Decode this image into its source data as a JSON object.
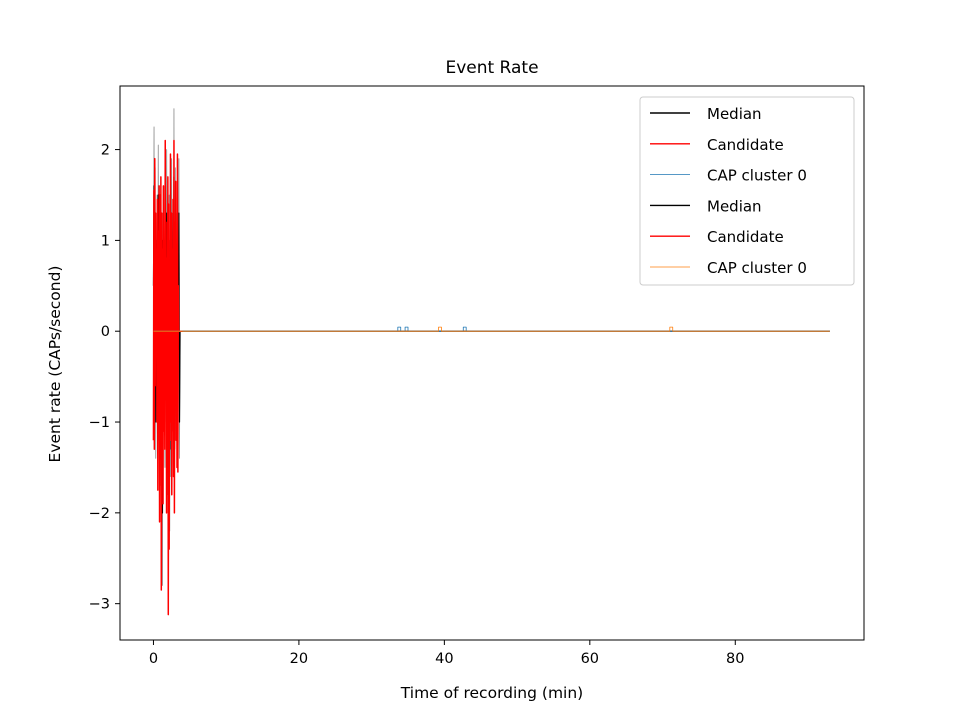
{
  "chart_data": {
    "type": "line",
    "title": "Event Rate",
    "xlabel": "Time of recording (min)",
    "ylabel": "Event rate (CAPs/second)",
    "xlim": [
      -4.6,
      97.7
    ],
    "ylim": [
      -3.4,
      2.7
    ],
    "xticks": [
      0,
      20,
      40,
      60,
      80
    ],
    "xtick_labels": [
      "0",
      "20",
      "40",
      "60",
      "80"
    ],
    "yticks": [
      -3,
      -2,
      -1,
      0,
      1,
      2
    ],
    "ytick_labels": [
      "−3",
      "−2",
      "−1",
      "0",
      "1",
      "2"
    ],
    "grid": false,
    "legend_position": "top-right",
    "legend": [
      {
        "label": "Median",
        "color": "#000000"
      },
      {
        "label": "Candidate",
        "color": "#ff0000"
      },
      {
        "label": "CAP cluster 0",
        "color": "#1f77b4"
      },
      {
        "label": "Median",
        "color": "#000000"
      },
      {
        "label": "Candidate",
        "color": "#ff0000"
      },
      {
        "label": "CAP cluster 0",
        "color": "#ff7f0e"
      }
    ],
    "series": [
      {
        "color": "#888888",
        "values": [
          [
            0.0,
            0.6
          ],
          [
            0.08,
            2.25
          ],
          [
            0.16,
            -0.9
          ],
          [
            0.24,
            1.8
          ],
          [
            0.32,
            -1.4
          ],
          [
            0.4,
            0.8
          ],
          [
            0.5,
            1.5
          ],
          [
            0.58,
            -0.3
          ],
          [
            0.66,
            2.05
          ],
          [
            0.74,
            -1.2
          ],
          [
            0.82,
            0.5
          ],
          [
            0.9,
            -1.7
          ],
          [
            1.0,
            1.3
          ],
          [
            1.08,
            -2.0
          ],
          [
            1.16,
            0.9
          ],
          [
            1.24,
            -2.8
          ],
          [
            1.32,
            1.6
          ],
          [
            1.4,
            -1.0
          ],
          [
            1.5,
            0.7
          ],
          [
            1.58,
            -1.5
          ],
          [
            1.66,
            1.4
          ],
          [
            1.74,
            -0.6
          ],
          [
            1.82,
            2.0
          ],
          [
            1.9,
            -1.8
          ],
          [
            2.0,
            1.2
          ],
          [
            2.08,
            -3.0
          ],
          [
            2.16,
            1.5
          ],
          [
            2.24,
            -2.2
          ],
          [
            2.32,
            0.9
          ],
          [
            2.4,
            -1.3
          ],
          [
            2.5,
            1.9
          ],
          [
            2.58,
            -0.8
          ],
          [
            2.66,
            1.1
          ],
          [
            2.74,
            -1.6
          ],
          [
            2.82,
            2.45
          ],
          [
            2.9,
            -1.9
          ],
          [
            3.0,
            1.8
          ],
          [
            3.08,
            -0.7
          ],
          [
            3.16,
            1.3
          ],
          [
            3.24,
            -1.5
          ],
          [
            3.32,
            0.6
          ],
          [
            3.4,
            -0.2
          ],
          [
            3.5,
            1.9
          ],
          [
            3.58,
            -1.4
          ],
          [
            3.66,
            0.0
          ],
          [
            5.0,
            0.0
          ],
          [
            93.0,
            0.0
          ]
        ]
      },
      {
        "color": "#000000",
        "values": [
          [
            0.0,
            0.5
          ],
          [
            0.08,
            1.6
          ],
          [
            0.16,
            -0.6
          ],
          [
            0.24,
            1.2
          ],
          [
            0.32,
            -1.0
          ],
          [
            0.4,
            0.6
          ],
          [
            0.5,
            1.0
          ],
          [
            0.58,
            -0.4
          ],
          [
            0.66,
            1.5
          ],
          [
            0.74,
            -0.9
          ],
          [
            0.82,
            0.3
          ],
          [
            0.9,
            -1.2
          ],
          [
            1.0,
            0.8
          ],
          [
            1.08,
            -1.5
          ],
          [
            1.16,
            0.6
          ],
          [
            1.24,
            -2.0
          ],
          [
            1.32,
            1.0
          ],
          [
            1.4,
            -0.7
          ],
          [
            1.5,
            0.5
          ],
          [
            1.58,
            -1.0
          ],
          [
            1.66,
            1.0
          ],
          [
            1.74,
            -0.4
          ],
          [
            1.82,
            1.3
          ],
          [
            1.9,
            -1.2
          ],
          [
            2.0,
            0.8
          ],
          [
            2.08,
            -2.3
          ],
          [
            2.16,
            1.0
          ],
          [
            2.24,
            -1.6
          ],
          [
            2.32,
            0.6
          ],
          [
            2.4,
            -0.9
          ],
          [
            2.5,
            1.3
          ],
          [
            2.58,
            -0.5
          ],
          [
            2.66,
            0.8
          ],
          [
            2.74,
            -1.1
          ],
          [
            2.82,
            1.7
          ],
          [
            2.9,
            -1.3
          ],
          [
            3.0,
            1.2
          ],
          [
            3.08,
            -0.5
          ],
          [
            3.16,
            0.9
          ],
          [
            3.24,
            -1.0
          ],
          [
            3.32,
            0.4
          ],
          [
            3.4,
            -0.2
          ],
          [
            3.5,
            1.3
          ],
          [
            3.58,
            -1.0
          ],
          [
            3.66,
            0.0
          ],
          [
            5.0,
            0.0
          ],
          [
            93.0,
            0.0
          ]
        ]
      },
      {
        "color": "#ff0000",
        "values": [
          [
            0.0,
            -1.2
          ],
          [
            0.06,
            1.55
          ],
          [
            0.12,
            -1.3
          ],
          [
            0.18,
            1.9
          ],
          [
            0.24,
            -0.6
          ],
          [
            0.3,
            1.3
          ],
          [
            0.36,
            -0.2
          ],
          [
            0.42,
            0.9
          ],
          [
            0.48,
            -1.0
          ],
          [
            0.54,
            1.45
          ],
          [
            0.6,
            -1.75
          ],
          [
            0.66,
            1.1
          ],
          [
            0.72,
            -0.4
          ],
          [
            0.78,
            1.6
          ],
          [
            0.84,
            -2.1
          ],
          [
            0.9,
            1.5
          ],
          [
            0.96,
            -1.4
          ],
          [
            1.02,
            1.7
          ],
          [
            1.08,
            -2.85
          ],
          [
            1.14,
            1.3
          ],
          [
            1.2,
            -0.8
          ],
          [
            1.26,
            0.9
          ],
          [
            1.32,
            -1.9
          ],
          [
            1.38,
            1.6
          ],
          [
            1.44,
            -1.1
          ],
          [
            1.5,
            0.7
          ],
          [
            1.56,
            -1.3
          ],
          [
            1.62,
            2.1
          ],
          [
            1.68,
            -0.5
          ],
          [
            1.74,
            1.2
          ],
          [
            1.8,
            -2.0
          ],
          [
            1.86,
            0.8
          ],
          [
            1.92,
            -1.55
          ],
          [
            1.98,
            1.7
          ],
          [
            2.04,
            -3.12
          ],
          [
            2.1,
            1.4
          ],
          [
            2.16,
            -2.4
          ],
          [
            2.22,
            0.6
          ],
          [
            2.28,
            -1.2
          ],
          [
            2.34,
            1.95
          ],
          [
            2.4,
            -1.0
          ],
          [
            2.46,
            1.3
          ],
          [
            2.52,
            -1.8
          ],
          [
            2.58,
            0.9
          ],
          [
            2.64,
            -0.7
          ],
          [
            2.7,
            1.45
          ],
          [
            2.76,
            -1.6
          ],
          [
            2.82,
            2.1
          ],
          [
            2.88,
            -2.0
          ],
          [
            2.94,
            1.2
          ],
          [
            3.0,
            -0.4
          ],
          [
            3.06,
            1.65
          ],
          [
            3.12,
            -1.2
          ],
          [
            3.18,
            0.8
          ],
          [
            3.24,
            -1.5
          ],
          [
            3.3,
            1.95
          ],
          [
            3.36,
            -1.55
          ],
          [
            3.42,
            0.5
          ],
          [
            3.48,
            0.0
          ],
          [
            4.0,
            0.0
          ]
        ]
      },
      {
        "color": "#1f77b4",
        "values": [
          [
            0.0,
            0.0
          ],
          [
            33.6,
            0.0
          ],
          [
            33.6,
            0.045
          ],
          [
            34.0,
            0.045
          ],
          [
            34.0,
            0.0
          ],
          [
            34.6,
            0.0
          ],
          [
            34.6,
            0.045
          ],
          [
            35.0,
            0.045
          ],
          [
            35.0,
            0.0
          ],
          [
            42.6,
            0.0
          ],
          [
            42.6,
            0.045
          ],
          [
            43.0,
            0.045
          ],
          [
            43.0,
            0.0
          ],
          [
            93.0,
            0.0
          ]
        ]
      },
      {
        "color": "#ff7f0e",
        "values": [
          [
            0.0,
            0.0
          ],
          [
            39.2,
            0.0
          ],
          [
            39.2,
            0.045
          ],
          [
            39.6,
            0.045
          ],
          [
            39.6,
            0.0
          ],
          [
            71.0,
            0.0
          ],
          [
            71.0,
            0.045
          ],
          [
            71.4,
            0.045
          ],
          [
            71.4,
            0.0
          ],
          [
            93.0,
            0.0
          ]
        ]
      }
    ]
  }
}
